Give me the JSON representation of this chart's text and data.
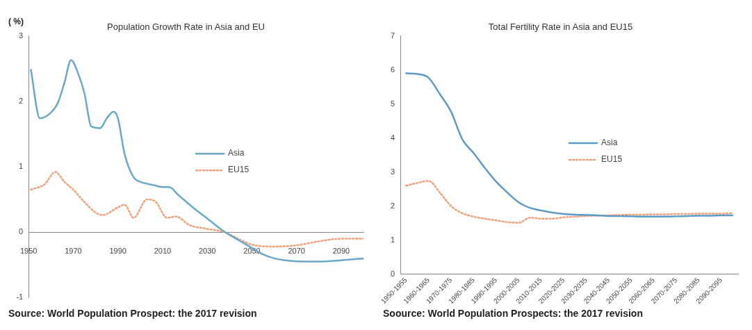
{
  "chart_data": [
    {
      "type": "line",
      "title": "Population Growth Rate in Asia and EU",
      "ylabel": "( %)",
      "xlim": [
        1950,
        2100
      ],
      "xticks": [
        1950,
        1970,
        1990,
        2010,
        2030,
        2050,
        2070,
        2090
      ],
      "ylim": [
        -1,
        3
      ],
      "yticks": [
        -1,
        0,
        1,
        2,
        3
      ],
      "grid": false,
      "legend": "center",
      "annotations": [
        "Source: World Population Prospect: the 2017 revision"
      ],
      "series": [
        {
          "name": "Asia",
          "color": "#6aa8c8",
          "line_style": "solid",
          "x": [
            1951,
            1955,
            1960,
            1963,
            1966,
            1969,
            1972,
            1975,
            1978,
            1982,
            1985,
            1988,
            1990,
            1993,
            1997,
            2000,
            2006,
            2010,
            2013,
            2017,
            2025,
            2030,
            2038,
            2045,
            2050,
            2055,
            2060,
            2065,
            2075,
            2080,
            2090,
            2100
          ],
          "values": [
            2.48,
            1.74,
            1.83,
            1.97,
            2.28,
            2.63,
            2.44,
            2.12,
            1.62,
            1.59,
            1.74,
            1.84,
            1.74,
            1.19,
            0.84,
            0.77,
            0.72,
            0.69,
            0.69,
            0.57,
            0.34,
            0.21,
            0,
            -0.14,
            -0.24,
            -0.34,
            -0.4,
            -0.43,
            -0.45,
            -0.45,
            -0.43,
            -0.4
          ]
        },
        {
          "name": "EU15",
          "color": "#f0a07a",
          "line_style": "dotted",
          "x": [
            1951,
            1957,
            1962,
            1966,
            1970,
            1975,
            1980,
            1983,
            1990,
            1993,
            1997,
            2003,
            2007,
            2012,
            2016,
            2022,
            2030,
            2038,
            2045,
            2050,
            2060,
            2070,
            2080,
            2090,
            2100
          ],
          "values": [
            0.65,
            0.73,
            0.92,
            0.77,
            0.65,
            0.46,
            0.3,
            0.26,
            0.38,
            0.42,
            0.22,
            0.5,
            0.46,
            0.22,
            0.24,
            0.11,
            0.05,
            0,
            -0.12,
            -0.19,
            -0.22,
            -0.2,
            -0.14,
            -0.1,
            -0.1
          ]
        }
      ]
    },
    {
      "type": "line",
      "title": "Total Fertility Rate in Asia and EU15",
      "ylim": [
        0,
        7
      ],
      "yticks": [
        0,
        1,
        2,
        3,
        4,
        5,
        6,
        7
      ],
      "grid": false,
      "legend": "center",
      "annotations": [
        "Soource:  World Population Prospects: the 2017 revision"
      ],
      "categories": [
        "1950-1955",
        null,
        "1960-1965",
        null,
        "1970-1975",
        null,
        "1980-1985",
        null,
        "1990-1995",
        null,
        "2000-2005",
        null,
        "2010-2015",
        null,
        "2020-2025",
        null,
        "2030-2035",
        null,
        "2040-2045",
        null,
        "2050-2055",
        null,
        "2060-2065",
        null,
        "2070-2075",
        null,
        "2080-2085",
        null,
        "2090-2095",
        null
      ],
      "series": [
        {
          "name": "Asia",
          "color": "#5b9bc8",
          "line_style": "solid",
          "values": [
            5.9,
            5.88,
            5.77,
            5.29,
            4.77,
            3.96,
            3.56,
            3.12,
            2.72,
            2.4,
            2.11,
            1.95,
            1.87,
            1.81,
            1.77,
            1.75,
            1.74,
            1.73,
            1.71,
            1.71,
            1.7,
            1.69,
            1.69,
            1.69,
            1.7,
            1.71,
            1.72,
            1.72,
            1.73,
            1.73
          ]
        },
        {
          "name": "EU15",
          "color": "#f0a07a",
          "line_style": "dotted",
          "values": [
            2.6,
            2.68,
            2.74,
            2.4,
            2.0,
            1.79,
            1.69,
            1.63,
            1.58,
            1.53,
            1.51,
            1.66,
            1.63,
            1.63,
            1.67,
            1.69,
            1.71,
            1.72,
            1.73,
            1.74,
            1.75,
            1.75,
            1.76,
            1.76,
            1.77,
            1.77,
            1.78,
            1.78,
            1.78,
            1.79
          ]
        }
      ]
    }
  ]
}
